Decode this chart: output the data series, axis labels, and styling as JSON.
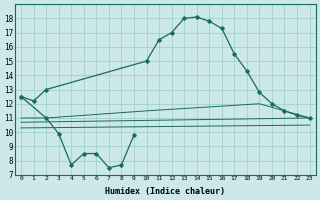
{
  "xlabel": "Humidex (Indice chaleur)",
  "background_color": "#cce8e8",
  "grid_color": "#99cccc",
  "line_color": "#1a6b5a",
  "x_ticks": [
    0,
    1,
    2,
    3,
    4,
    5,
    6,
    7,
    8,
    9,
    10,
    11,
    12,
    13,
    14,
    15,
    16,
    17,
    18,
    19,
    20,
    21,
    22,
    23
  ],
  "ylim": [
    7,
    19
  ],
  "yticks": [
    7,
    8,
    9,
    10,
    11,
    12,
    13,
    14,
    15,
    16,
    17,
    18
  ],
  "line1_x": [
    0,
    1,
    2,
    10,
    11,
    12,
    13,
    14,
    15,
    16,
    17,
    18,
    19,
    20,
    21,
    22,
    23
  ],
  "line1_y": [
    12.5,
    12.2,
    13.0,
    15.0,
    16.5,
    17.0,
    18.0,
    18.1,
    17.8,
    17.3,
    15.5,
    14.3,
    12.8,
    12.0,
    11.5,
    11.2,
    11.0
  ],
  "line2_x": [
    0,
    2,
    3,
    4,
    5,
    6,
    7,
    8,
    9
  ],
  "line2_y": [
    12.5,
    11.0,
    9.9,
    7.7,
    8.5,
    8.5,
    7.5,
    7.7,
    9.8
  ],
  "line3_x": [
    0,
    2,
    10,
    19,
    23
  ],
  "line3_y": [
    11.0,
    11.0,
    11.5,
    12.0,
    11.0
  ],
  "line4_x": [
    0,
    23
  ],
  "line4_y": [
    10.7,
    11.0
  ],
  "line5_x": [
    0,
    23
  ],
  "line5_y": [
    10.3,
    10.5
  ]
}
